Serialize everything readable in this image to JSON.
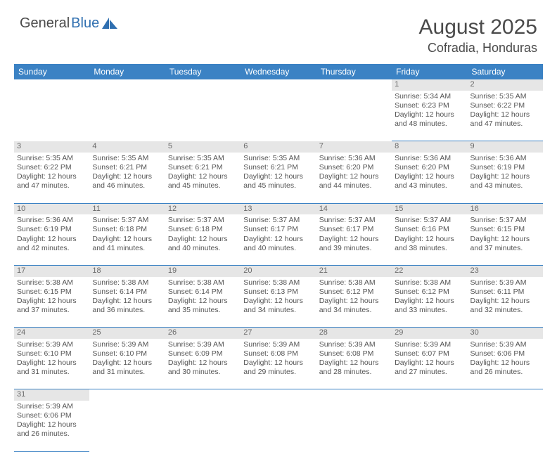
{
  "logo": {
    "text1": "General",
    "text2": "Blue"
  },
  "title": "August 2025",
  "location": "Cofradia, Honduras",
  "colors": {
    "header_bg": "#3b82c4",
    "header_text": "#ffffff",
    "daynum_bg": "#e6e6e6",
    "grid_line": "#3b82c4",
    "body_text": "#555555",
    "accent_blue": "#2f6fb0"
  },
  "weekdays": [
    "Sunday",
    "Monday",
    "Tuesday",
    "Wednesday",
    "Thursday",
    "Friday",
    "Saturday"
  ],
  "weeks": [
    {
      "nums": [
        "",
        "",
        "",
        "",
        "",
        "1",
        "2"
      ],
      "cells": [
        null,
        null,
        null,
        null,
        null,
        {
          "sr": "Sunrise: 5:34 AM",
          "ss": "Sunset: 6:23 PM",
          "d1": "Daylight: 12 hours",
          "d2": "and 48 minutes."
        },
        {
          "sr": "Sunrise: 5:35 AM",
          "ss": "Sunset: 6:22 PM",
          "d1": "Daylight: 12 hours",
          "d2": "and 47 minutes."
        }
      ]
    },
    {
      "nums": [
        "3",
        "4",
        "5",
        "6",
        "7",
        "8",
        "9"
      ],
      "cells": [
        {
          "sr": "Sunrise: 5:35 AM",
          "ss": "Sunset: 6:22 PM",
          "d1": "Daylight: 12 hours",
          "d2": "and 47 minutes."
        },
        {
          "sr": "Sunrise: 5:35 AM",
          "ss": "Sunset: 6:21 PM",
          "d1": "Daylight: 12 hours",
          "d2": "and 46 minutes."
        },
        {
          "sr": "Sunrise: 5:35 AM",
          "ss": "Sunset: 6:21 PM",
          "d1": "Daylight: 12 hours",
          "d2": "and 45 minutes."
        },
        {
          "sr": "Sunrise: 5:35 AM",
          "ss": "Sunset: 6:21 PM",
          "d1": "Daylight: 12 hours",
          "d2": "and 45 minutes."
        },
        {
          "sr": "Sunrise: 5:36 AM",
          "ss": "Sunset: 6:20 PM",
          "d1": "Daylight: 12 hours",
          "d2": "and 44 minutes."
        },
        {
          "sr": "Sunrise: 5:36 AM",
          "ss": "Sunset: 6:20 PM",
          "d1": "Daylight: 12 hours",
          "d2": "and 43 minutes."
        },
        {
          "sr": "Sunrise: 5:36 AM",
          "ss": "Sunset: 6:19 PM",
          "d1": "Daylight: 12 hours",
          "d2": "and 43 minutes."
        }
      ]
    },
    {
      "nums": [
        "10",
        "11",
        "12",
        "13",
        "14",
        "15",
        "16"
      ],
      "cells": [
        {
          "sr": "Sunrise: 5:36 AM",
          "ss": "Sunset: 6:19 PM",
          "d1": "Daylight: 12 hours",
          "d2": "and 42 minutes."
        },
        {
          "sr": "Sunrise: 5:37 AM",
          "ss": "Sunset: 6:18 PM",
          "d1": "Daylight: 12 hours",
          "d2": "and 41 minutes."
        },
        {
          "sr": "Sunrise: 5:37 AM",
          "ss": "Sunset: 6:18 PM",
          "d1": "Daylight: 12 hours",
          "d2": "and 40 minutes."
        },
        {
          "sr": "Sunrise: 5:37 AM",
          "ss": "Sunset: 6:17 PM",
          "d1": "Daylight: 12 hours",
          "d2": "and 40 minutes."
        },
        {
          "sr": "Sunrise: 5:37 AM",
          "ss": "Sunset: 6:17 PM",
          "d1": "Daylight: 12 hours",
          "d2": "and 39 minutes."
        },
        {
          "sr": "Sunrise: 5:37 AM",
          "ss": "Sunset: 6:16 PM",
          "d1": "Daylight: 12 hours",
          "d2": "and 38 minutes."
        },
        {
          "sr": "Sunrise: 5:37 AM",
          "ss": "Sunset: 6:15 PM",
          "d1": "Daylight: 12 hours",
          "d2": "and 37 minutes."
        }
      ]
    },
    {
      "nums": [
        "17",
        "18",
        "19",
        "20",
        "21",
        "22",
        "23"
      ],
      "cells": [
        {
          "sr": "Sunrise: 5:38 AM",
          "ss": "Sunset: 6:15 PM",
          "d1": "Daylight: 12 hours",
          "d2": "and 37 minutes."
        },
        {
          "sr": "Sunrise: 5:38 AM",
          "ss": "Sunset: 6:14 PM",
          "d1": "Daylight: 12 hours",
          "d2": "and 36 minutes."
        },
        {
          "sr": "Sunrise: 5:38 AM",
          "ss": "Sunset: 6:14 PM",
          "d1": "Daylight: 12 hours",
          "d2": "and 35 minutes."
        },
        {
          "sr": "Sunrise: 5:38 AM",
          "ss": "Sunset: 6:13 PM",
          "d1": "Daylight: 12 hours",
          "d2": "and 34 minutes."
        },
        {
          "sr": "Sunrise: 5:38 AM",
          "ss": "Sunset: 6:12 PM",
          "d1": "Daylight: 12 hours",
          "d2": "and 34 minutes."
        },
        {
          "sr": "Sunrise: 5:38 AM",
          "ss": "Sunset: 6:12 PM",
          "d1": "Daylight: 12 hours",
          "d2": "and 33 minutes."
        },
        {
          "sr": "Sunrise: 5:39 AM",
          "ss": "Sunset: 6:11 PM",
          "d1": "Daylight: 12 hours",
          "d2": "and 32 minutes."
        }
      ]
    },
    {
      "nums": [
        "24",
        "25",
        "26",
        "27",
        "28",
        "29",
        "30"
      ],
      "cells": [
        {
          "sr": "Sunrise: 5:39 AM",
          "ss": "Sunset: 6:10 PM",
          "d1": "Daylight: 12 hours",
          "d2": "and 31 minutes."
        },
        {
          "sr": "Sunrise: 5:39 AM",
          "ss": "Sunset: 6:10 PM",
          "d1": "Daylight: 12 hours",
          "d2": "and 31 minutes."
        },
        {
          "sr": "Sunrise: 5:39 AM",
          "ss": "Sunset: 6:09 PM",
          "d1": "Daylight: 12 hours",
          "d2": "and 30 minutes."
        },
        {
          "sr": "Sunrise: 5:39 AM",
          "ss": "Sunset: 6:08 PM",
          "d1": "Daylight: 12 hours",
          "d2": "and 29 minutes."
        },
        {
          "sr": "Sunrise: 5:39 AM",
          "ss": "Sunset: 6:08 PM",
          "d1": "Daylight: 12 hours",
          "d2": "and 28 minutes."
        },
        {
          "sr": "Sunrise: 5:39 AM",
          "ss": "Sunset: 6:07 PM",
          "d1": "Daylight: 12 hours",
          "d2": "and 27 minutes."
        },
        {
          "sr": "Sunrise: 5:39 AM",
          "ss": "Sunset: 6:06 PM",
          "d1": "Daylight: 12 hours",
          "d2": "and 26 minutes."
        }
      ]
    },
    {
      "nums": [
        "31",
        "",
        "",
        "",
        "",
        "",
        ""
      ],
      "cells": [
        {
          "sr": "Sunrise: 5:39 AM",
          "ss": "Sunset: 6:06 PM",
          "d1": "Daylight: 12 hours",
          "d2": "and 26 minutes."
        },
        null,
        null,
        null,
        null,
        null,
        null
      ]
    }
  ]
}
